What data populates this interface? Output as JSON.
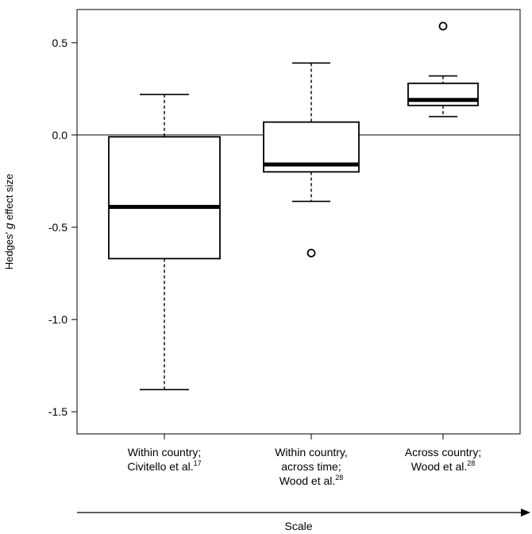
{
  "chart_data": {
    "type": "box",
    "ylabel_prefix": "Hedges' ",
    "ylabel_italic": "g",
    "ylabel_suffix": " effect size",
    "xlabel": "Scale",
    "ylim": [
      -1.62,
      0.68
    ],
    "yticks": [
      {
        "value": 0.5,
        "label": "0.5"
      },
      {
        "value": 0.0,
        "label": "0.0"
      },
      {
        "value": -0.5,
        "label": "-0.5"
      },
      {
        "value": -1.0,
        "label": "-1.0"
      },
      {
        "value": -1.5,
        "label": "-1.5"
      }
    ],
    "reference_line": 0,
    "groups": [
      {
        "label_lines": [
          {
            "text": "Within country;",
            "sup": ""
          },
          {
            "text": "Civitello et al.",
            "sup": "17"
          }
        ],
        "whisker_low": -1.38,
        "q1": -0.67,
        "median": -0.39,
        "q3": -0.01,
        "whisker_high": 0.22,
        "outliers": []
      },
      {
        "label_lines": [
          {
            "text": "Within country,",
            "sup": ""
          },
          {
            "text": "across time;",
            "sup": ""
          },
          {
            "text": "Wood et al.",
            "sup": "28"
          }
        ],
        "whisker_low": -0.36,
        "q1": -0.2,
        "median": -0.16,
        "q3": 0.07,
        "whisker_high": 0.39,
        "outliers": [
          -0.64
        ]
      },
      {
        "label_lines": [
          {
            "text": "Across country;",
            "sup": ""
          },
          {
            "text": "Wood et al.",
            "sup": "28"
          }
        ],
        "whisker_low": 0.1,
        "q1": 0.16,
        "median": 0.19,
        "q3": 0.28,
        "whisker_high": 0.32,
        "outliers": [
          0.59
        ]
      }
    ]
  }
}
